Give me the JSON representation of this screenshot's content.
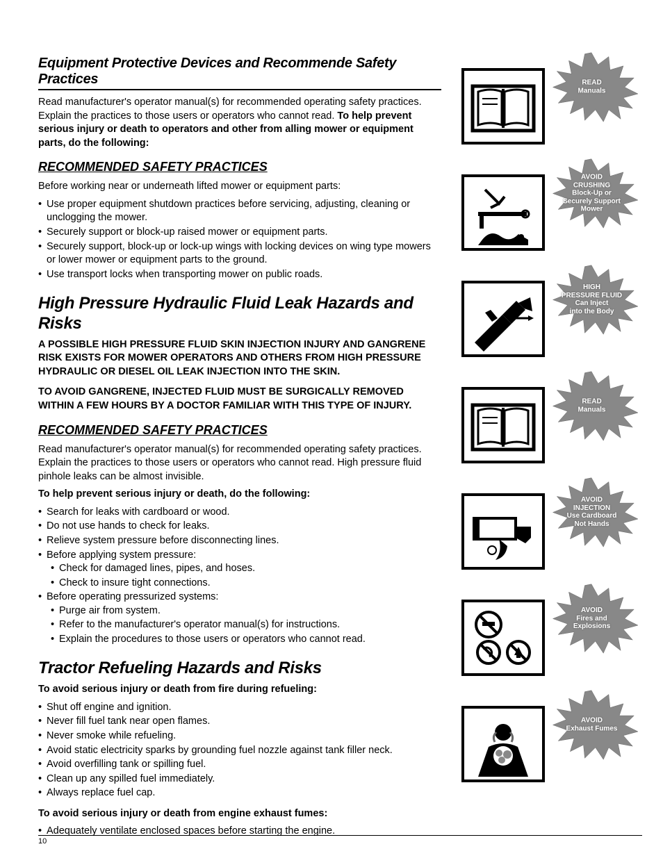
{
  "page_number": "10",
  "colors": {
    "text": "#000000",
    "bg": "#ffffff",
    "burst_fill": "#888888"
  },
  "sec1": {
    "title": "Equipment Protective Devices and Recommende Safety Practices",
    "p1": "Read manufacturer's operator manual(s) for recommended operating safety practices. Explain the practices to those users or operators who cannot read.",
    "p1b": "To help prevent serious injury or death to operators and other from alling mower or equipment parts, do the following:",
    "sub_title": "RECOMMENDED SAFETY PRACTICES",
    "p2": "Before working near or underneath lifted mower or equipment parts:",
    "bullets": [
      "Use proper equipment shutdown practices before servicing, adjusting, cleaning or unclogging the mower.",
      "Securely support or block-up raised mower or equipment parts.",
      "Securely support, block-up or lock-up wings with locking devices on wing type mowers or lower mower or equipment parts to the ground.",
      "Use transport locks when transporting mower on public roads."
    ]
  },
  "sec2": {
    "title": "High Pressure Hydraulic Fluid Leak Hazards and Risks",
    "p1b": "A POSSIBLE HIGH PRESSURE FLUID SKIN INJECTION INJURY AND GANGRENE RISK EXISTS FOR MOWER OPERATORS AND OTHERS FROM HIGH PRESSURE HYDRAULIC OR DIESEL OIL LEAK INJECTION INTO THE SKIN.",
    "p2b": "TO AVOID GANGRENE, INJECTED FLUID MUST BE SURGICALLY REMOVED WITHIN A FEW HOURS BY A DOCTOR FAMILIAR WITH THIS TYPE OF INJURY.",
    "sub_title": "RECOMMENDED SAFETY PRACTICES",
    "p3": "Read manufacturer's operator manual(s) for recommended operating safety practices. Explain the practices to those users or operators who cannot read. High pressure fluid pinhole leaks can be almost invisible.",
    "p3b": "To help prevent serious injury or death, do the following:",
    "bullets": [
      "Search for leaks with cardboard or wood.",
      "Do not use hands to check for leaks.",
      "Relieve system pressure before disconnecting lines.",
      "Before applying system pressure:",
      "Before operating pressurized systems:"
    ],
    "sub_b4": [
      "Check for damaged lines, pipes, and hoses.",
      "Check to insure tight connections."
    ],
    "sub_b5": [
      "Purge air from system.",
      "Refer to the manufacturer's operator manual(s) for instructions.",
      "Explain the procedures to those users or operators who cannot read."
    ]
  },
  "sec3": {
    "title": "Tractor Refueling Hazards and Risks",
    "p1b": "To avoid serious injury or death from fire during refueling:",
    "bullets": [
      "Shut off engine and ignition.",
      "Never fill fuel tank near open flames.",
      "Never smoke while refueling.",
      "Avoid static electricity sparks by grounding fuel nozzle against tank filler neck.",
      "Avoid overfilling tank or spilling fuel.",
      "Clean up any spilled fuel immediately.",
      "Always replace fuel cap."
    ],
    "p2b": "To avoid serious injury or death from engine exhaust fumes:",
    "bullets2": [
      "Adequately ventilate enclosed spaces before starting the engine."
    ]
  },
  "side": [
    {
      "icon": "book",
      "burst": "READ\nManuals"
    },
    {
      "icon": "crush",
      "burst": "AVOID\nCRUSHING\nBlock-Up or\nSecurely Support\nMower"
    },
    {
      "icon": "inject",
      "burst": "HIGH\nPRESSURE FLUID\nCan Inject\ninto the Body"
    },
    {
      "icon": "book",
      "burst": "READ\nManuals"
    },
    {
      "icon": "cardb",
      "burst": "AVOID\nINJECTION\nUse Cardboard\nNot Hands"
    },
    {
      "icon": "nosmoke",
      "burst": "AVOID\nFires and\nExplosions"
    },
    {
      "icon": "fumes",
      "burst": "AVOID\nExhaust Fumes"
    }
  ]
}
